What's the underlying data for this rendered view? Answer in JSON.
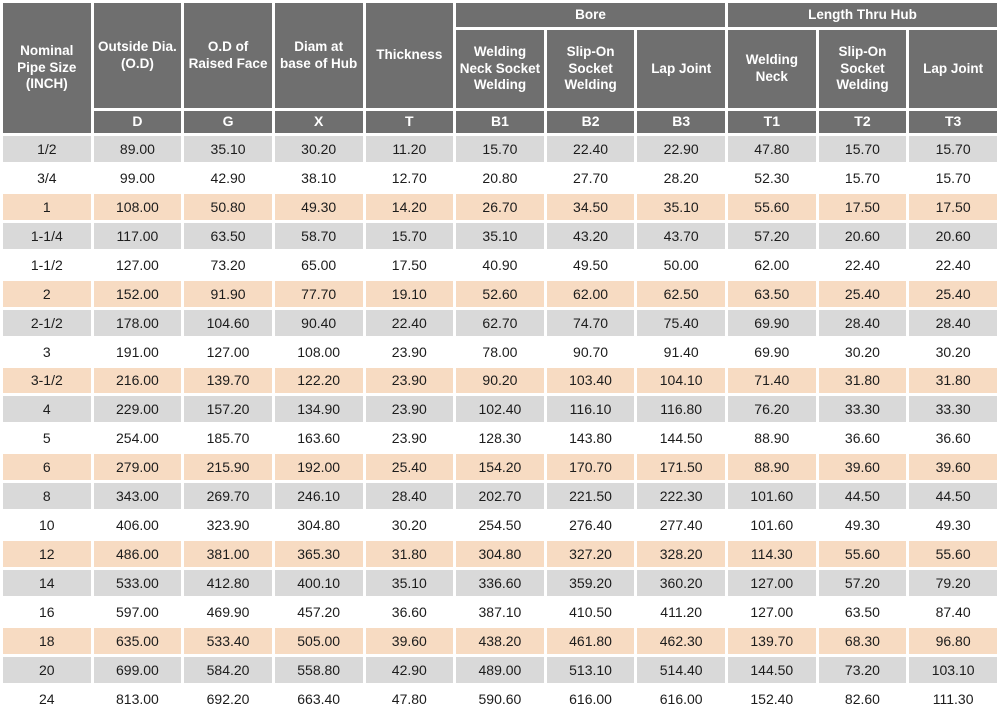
{
  "colors": {
    "header_bg": "#6f6f6f",
    "header_text": "#ffffff",
    "row_gray": "#d9d9d9",
    "row_white": "#ffffff",
    "row_peach": "#f7dbc2",
    "data_text": "#1c1c1c"
  },
  "table": {
    "column_groups": {
      "bore": "Bore",
      "length_thru_hub": "Length Thru Hub"
    },
    "columns": {
      "nominal": "Nominal Pipe Size (INCH)",
      "outside_dia": "Outside Dia. (O.D)",
      "od_raised_face": "O.D of Raised Face",
      "diam_base_hub": "Diam at base of Hub",
      "thickness": "Thickness",
      "bore_sub": [
        "Welding Neck Socket Welding",
        "Slip-On Socket Welding",
        "Lap Joint"
      ],
      "length_sub": [
        "Welding Neck",
        "Slip-On Socket Welding",
        "Lap Joint"
      ],
      "letters": [
        "D",
        "G",
        "X",
        "T",
        "B1",
        "B2",
        "B3",
        "T1",
        "T2",
        "T3"
      ]
    },
    "row_pattern": [
      "gray",
      "white",
      "peach"
    ],
    "rows": [
      {
        "size": "1/2",
        "values": [
          "89.00",
          "35.10",
          "30.20",
          "11.20",
          "15.70",
          "22.40",
          "22.90",
          "47.80",
          "15.70",
          "15.70"
        ]
      },
      {
        "size": "3/4",
        "values": [
          "99.00",
          "42.90",
          "38.10",
          "12.70",
          "20.80",
          "27.70",
          "28.20",
          "52.30",
          "15.70",
          "15.70"
        ]
      },
      {
        "size": "1",
        "values": [
          "108.00",
          "50.80",
          "49.30",
          "14.20",
          "26.70",
          "34.50",
          "35.10",
          "55.60",
          "17.50",
          "17.50"
        ]
      },
      {
        "size": "1-1/4",
        "values": [
          "117.00",
          "63.50",
          "58.70",
          "15.70",
          "35.10",
          "43.20",
          "43.70",
          "57.20",
          "20.60",
          "20.60"
        ]
      },
      {
        "size": "1-1/2",
        "values": [
          "127.00",
          "73.20",
          "65.00",
          "17.50",
          "40.90",
          "49.50",
          "50.00",
          "62.00",
          "22.40",
          "22.40"
        ]
      },
      {
        "size": "2",
        "values": [
          "152.00",
          "91.90",
          "77.70",
          "19.10",
          "52.60",
          "62.00",
          "62.50",
          "63.50",
          "25.40",
          "25.40"
        ]
      },
      {
        "size": "2-1/2",
        "values": [
          "178.00",
          "104.60",
          "90.40",
          "22.40",
          "62.70",
          "74.70",
          "75.40",
          "69.90",
          "28.40",
          "28.40"
        ]
      },
      {
        "size": "3",
        "values": [
          "191.00",
          "127.00",
          "108.00",
          "23.90",
          "78.00",
          "90.70",
          "91.40",
          "69.90",
          "30.20",
          "30.20"
        ]
      },
      {
        "size": "3-1/2",
        "values": [
          "216.00",
          "139.70",
          "122.20",
          "23.90",
          "90.20",
          "103.40",
          "104.10",
          "71.40",
          "31.80",
          "31.80"
        ]
      },
      {
        "size": "4",
        "values": [
          "229.00",
          "157.20",
          "134.90",
          "23.90",
          "102.40",
          "116.10",
          "116.80",
          "76.20",
          "33.30",
          "33.30"
        ]
      },
      {
        "size": "5",
        "values": [
          "254.00",
          "185.70",
          "163.60",
          "23.90",
          "128.30",
          "143.80",
          "144.50",
          "88.90",
          "36.60",
          "36.60"
        ]
      },
      {
        "size": "6",
        "values": [
          "279.00",
          "215.90",
          "192.00",
          "25.40",
          "154.20",
          "170.70",
          "171.50",
          "88.90",
          "39.60",
          "39.60"
        ]
      },
      {
        "size": "8",
        "values": [
          "343.00",
          "269.70",
          "246.10",
          "28.40",
          "202.70",
          "221.50",
          "222.30",
          "101.60",
          "44.50",
          "44.50"
        ]
      },
      {
        "size": "10",
        "values": [
          "406.00",
          "323.90",
          "304.80",
          "30.20",
          "254.50",
          "276.40",
          "277.40",
          "101.60",
          "49.30",
          "49.30"
        ]
      },
      {
        "size": "12",
        "values": [
          "486.00",
          "381.00",
          "365.30",
          "31.80",
          "304.80",
          "327.20",
          "328.20",
          "114.30",
          "55.60",
          "55.60"
        ]
      },
      {
        "size": "14",
        "values": [
          "533.00",
          "412.80",
          "400.10",
          "35.10",
          "336.60",
          "359.20",
          "360.20",
          "127.00",
          "57.20",
          "79.20"
        ]
      },
      {
        "size": "16",
        "values": [
          "597.00",
          "469.90",
          "457.20",
          "36.60",
          "387.10",
          "410.50",
          "411.20",
          "127.00",
          "63.50",
          "87.40"
        ]
      },
      {
        "size": "18",
        "values": [
          "635.00",
          "533.40",
          "505.00",
          "39.60",
          "438.20",
          "461.80",
          "462.30",
          "139.70",
          "68.30",
          "96.80"
        ]
      },
      {
        "size": "20",
        "values": [
          "699.00",
          "584.20",
          "558.80",
          "42.90",
          "489.00",
          "513.10",
          "514.40",
          "144.50",
          "73.20",
          "103.10"
        ]
      },
      {
        "size": "24",
        "values": [
          "813.00",
          "692.20",
          "663.40",
          "47.80",
          "590.60",
          "616.00",
          "616.00",
          "152.40",
          "82.60",
          "111.30"
        ]
      }
    ]
  }
}
